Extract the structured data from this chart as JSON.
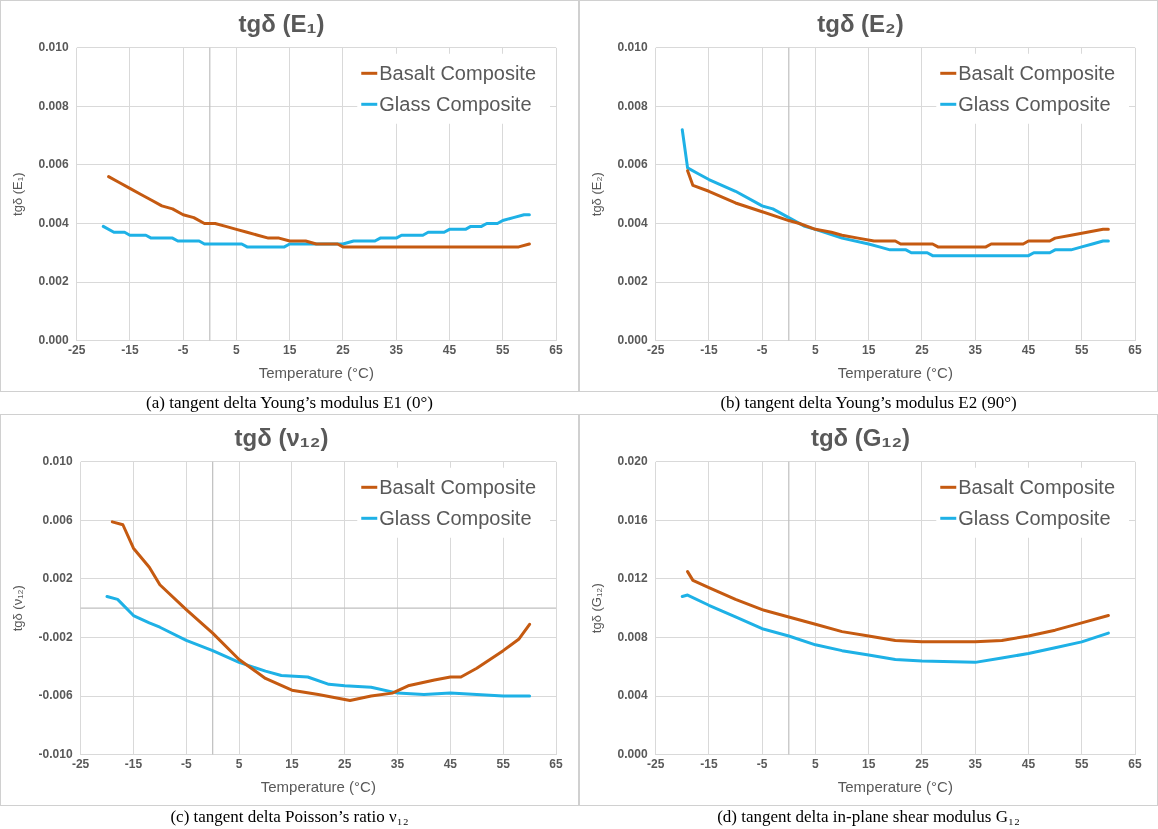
{
  "chart_data": [
    {
      "type": "line",
      "title": "tgδ (E₁)",
      "xlabel": "Temperature (°C)",
      "ylabel": "tgδ (E₁)",
      "annotations": [
        "(a) tangent delta Young’s modulus E1 (0°)"
      ],
      "xlim": [
        -25,
        65
      ],
      "xticks": [
        -25,
        -15,
        -5,
        5,
        15,
        25,
        35,
        45,
        55,
        65
      ],
      "ylim": [
        0,
        0.01
      ],
      "yticks": [
        {
          "value": 0,
          "label": "0.000"
        },
        {
          "value": 0.002,
          "label": "0.002"
        },
        {
          "value": 0.004,
          "label": "0.004"
        },
        {
          "value": 0.006,
          "label": "0.006"
        },
        {
          "value": 0.008,
          "label": "0.008"
        },
        {
          "value": 0.01,
          "label": "0.010"
        }
      ],
      "grid": true,
      "legend": "top right",
      "marker": "none",
      "line_style": "solid",
      "series": [
        {
          "name": "Basalt Composite",
          "color": "#c55a11",
          "x": [
            -19,
            -17,
            -15,
            -13,
            -11,
            -9,
            -7,
            -5,
            -3,
            -1,
            1,
            3,
            5,
            7,
            9,
            11,
            13,
            15,
            18,
            20,
            24,
            25,
            58,
            60
          ],
          "values": [
            0.0056,
            0.0054,
            0.0052,
            0.005,
            0.0048,
            0.0046,
            0.0045,
            0.0043,
            0.0042,
            0.004,
            0.004,
            0.0039,
            0.0038,
            0.0037,
            0.0036,
            0.0035,
            0.0035,
            0.0034,
            0.0034,
            0.0033,
            0.0033,
            0.0032,
            0.0032,
            0.0033
          ]
        },
        {
          "name": "Glass Composite",
          "color": "#1eb1e6",
          "x": [
            -20,
            -18,
            -16,
            -15,
            -12,
            -11,
            -7,
            -6,
            -2,
            -1,
            6,
            7,
            14,
            15,
            25,
            27,
            31,
            32,
            35,
            36,
            40,
            41,
            44,
            45,
            48,
            49,
            51,
            52,
            54,
            55,
            57,
            59,
            60
          ],
          "values": [
            0.0039,
            0.0037,
            0.0037,
            0.0036,
            0.0036,
            0.0035,
            0.0035,
            0.0034,
            0.0034,
            0.0033,
            0.0033,
            0.0032,
            0.0032,
            0.0033,
            0.0033,
            0.0034,
            0.0034,
            0.0035,
            0.0035,
            0.0036,
            0.0036,
            0.0037,
            0.0037,
            0.0038,
            0.0038,
            0.0039,
            0.0039,
            0.004,
            0.004,
            0.0041,
            0.0042,
            0.0043,
            0.0043
          ]
        }
      ]
    },
    {
      "type": "line",
      "title": "tgδ (E₂)",
      "xlabel": "Temperature (°C)",
      "ylabel": "tgδ (E₂)",
      "annotations": [
        "(b) tangent delta Young’s modulus E2 (90°)"
      ],
      "xlim": [
        -25,
        65
      ],
      "xticks": [
        -25,
        -15,
        -5,
        5,
        15,
        25,
        35,
        45,
        55,
        65
      ],
      "ylim": [
        0,
        0.01
      ],
      "yticks": [
        {
          "value": 0,
          "label": "0.000"
        },
        {
          "value": 0.002,
          "label": "0.002"
        },
        {
          "value": 0.004,
          "label": "0.004"
        },
        {
          "value": 0.006,
          "label": "0.006"
        },
        {
          "value": 0.008,
          "label": "0.008"
        },
        {
          "value": 0.01,
          "label": "0.010"
        }
      ],
      "grid": true,
      "legend": "top right",
      "marker": "none",
      "line_style": "solid",
      "series": [
        {
          "name": "Basalt Composite",
          "color": "#c55a11",
          "x": [
            -19,
            -18,
            -15,
            -10,
            -5,
            0,
            2,
            5,
            8,
            10,
            13,
            16,
            20,
            21,
            27,
            28,
            37,
            38,
            44,
            45,
            49,
            50,
            53,
            56,
            59,
            60
          ],
          "values": [
            0.0058,
            0.0053,
            0.0051,
            0.0047,
            0.0044,
            0.0041,
            0.004,
            0.0038,
            0.0037,
            0.0036,
            0.0035,
            0.0034,
            0.0034,
            0.0033,
            0.0033,
            0.0032,
            0.0032,
            0.0033,
            0.0033,
            0.0034,
            0.0034,
            0.0035,
            0.0036,
            0.0037,
            0.0038,
            0.0038
          ]
        },
        {
          "name": "Glass Composite",
          "color": "#1eb1e6",
          "x": [
            -20,
            -19,
            -17,
            -15,
            -10,
            -5,
            -3,
            0,
            3,
            5,
            10,
            15,
            17,
            19,
            22,
            23,
            26,
            27,
            45,
            46,
            49,
            50,
            53,
            55,
            57,
            59,
            60
          ],
          "values": [
            0.0072,
            0.0059,
            0.0057,
            0.0055,
            0.0051,
            0.0046,
            0.0045,
            0.0042,
            0.0039,
            0.0038,
            0.0035,
            0.0033,
            0.0032,
            0.0031,
            0.0031,
            0.003,
            0.003,
            0.0029,
            0.0029,
            0.003,
            0.003,
            0.0031,
            0.0031,
            0.0032,
            0.0033,
            0.0034,
            0.0034
          ]
        }
      ]
    },
    {
      "type": "line",
      "title": "tgδ (ν₁₂)",
      "xlabel": "Temperature (°C)",
      "ylabel": "tgδ (ν₁₂)",
      "annotations": [
        "(c) tangent delta Poisson’s ratio ν₁₂"
      ],
      "xlim": [
        -25,
        65
      ],
      "xticks": [
        -25,
        -15,
        -5,
        5,
        15,
        25,
        35,
        45,
        55,
        65
      ],
      "ylim": [
        -0.01,
        0.01
      ],
      "yticks": [
        {
          "value": -0.01,
          "label": "-0.010"
        },
        {
          "value": -0.006,
          "label": "-0.006"
        },
        {
          "value": -0.002,
          "label": "-0.002"
        },
        {
          "value": 0.002,
          "label": "0.002"
        },
        {
          "value": 0.006,
          "label": "0.006"
        },
        {
          "value": 0.01,
          "label": "0.010"
        }
      ],
      "grid": true,
      "legend": "top right",
      "marker": "none",
      "line_style": "solid",
      "series": [
        {
          "name": "Basalt Composite",
          "color": "#c55a11",
          "x": [
            -19,
            -17,
            -15,
            -12,
            -10,
            -5,
            0,
            5,
            10,
            15,
            20,
            26,
            30,
            34,
            37,
            42,
            45,
            47,
            50,
            55,
            58,
            60
          ],
          "values": [
            0.0059,
            0.0057,
            0.0041,
            0.0028,
            0.0016,
            -0.0001,
            -0.0017,
            -0.0035,
            -0.0048,
            -0.0056,
            -0.0059,
            -0.0063,
            -0.006,
            -0.0058,
            -0.0053,
            -0.0049,
            -0.0047,
            -0.0047,
            -0.0041,
            -0.0029,
            -0.0021,
            -0.0011
          ]
        },
        {
          "name": "Glass Composite",
          "color": "#1eb1e6",
          "x": [
            -20,
            -18,
            -15,
            -12,
            -10,
            -5,
            0,
            5,
            10,
            13,
            18,
            22,
            25,
            30,
            35,
            40,
            45,
            50,
            55,
            60
          ],
          "values": [
            0.0008,
            0.0006,
            -0.0005,
            -0.001,
            -0.0013,
            -0.0022,
            -0.0029,
            -0.0037,
            -0.0043,
            -0.0046,
            -0.0047,
            -0.0052,
            -0.0053,
            -0.0054,
            -0.0058,
            -0.0059,
            -0.0058,
            -0.0059,
            -0.006,
            -0.006
          ]
        }
      ]
    },
    {
      "type": "line",
      "title": "tgδ (G₁₂)",
      "xlabel": "Temperature (°C)",
      "ylabel": "tgδ (G₁₂)",
      "annotations": [
        "(d) tangent delta in-plane shear modulus G₁₂"
      ],
      "xlim": [
        -25,
        65
      ],
      "xticks": [
        -25,
        -15,
        -5,
        5,
        15,
        25,
        35,
        45,
        55,
        65
      ],
      "ylim": [
        0,
        0.02
      ],
      "yticks": [
        {
          "value": 0,
          "label": "0.000"
        },
        {
          "value": 0.004,
          "label": "0.004"
        },
        {
          "value": 0.008,
          "label": "0.008"
        },
        {
          "value": 0.012,
          "label": "0.012"
        },
        {
          "value": 0.016,
          "label": "0.016"
        },
        {
          "value": 0.02,
          "label": "0.020"
        }
      ],
      "grid": true,
      "legend": "top right",
      "marker": "none",
      "line_style": "solid",
      "series": [
        {
          "name": "Basalt Composite",
          "color": "#c55a11",
          "x": [
            -19,
            -18,
            -15,
            -10,
            -5,
            0,
            5,
            10,
            15,
            20,
            25,
            35,
            40,
            45,
            50,
            55,
            60
          ],
          "values": [
            0.0125,
            0.0119,
            0.0114,
            0.0106,
            0.0099,
            0.0094,
            0.0089,
            0.0084,
            0.0081,
            0.0078,
            0.0077,
            0.0077,
            0.0078,
            0.0081,
            0.0085,
            0.009,
            0.0095
          ]
        },
        {
          "name": "Glass Composite",
          "color": "#1eb1e6",
          "x": [
            -20,
            -19,
            -15,
            -10,
            -5,
            0,
            5,
            10,
            15,
            20,
            25,
            35,
            40,
            45,
            50,
            55,
            60
          ],
          "values": [
            0.0108,
            0.0109,
            0.0102,
            0.0094,
            0.0086,
            0.0081,
            0.0075,
            0.0071,
            0.0068,
            0.0065,
            0.0064,
            0.0063,
            0.0066,
            0.0069,
            0.0073,
            0.0077,
            0.0083
          ]
        }
      ]
    }
  ]
}
